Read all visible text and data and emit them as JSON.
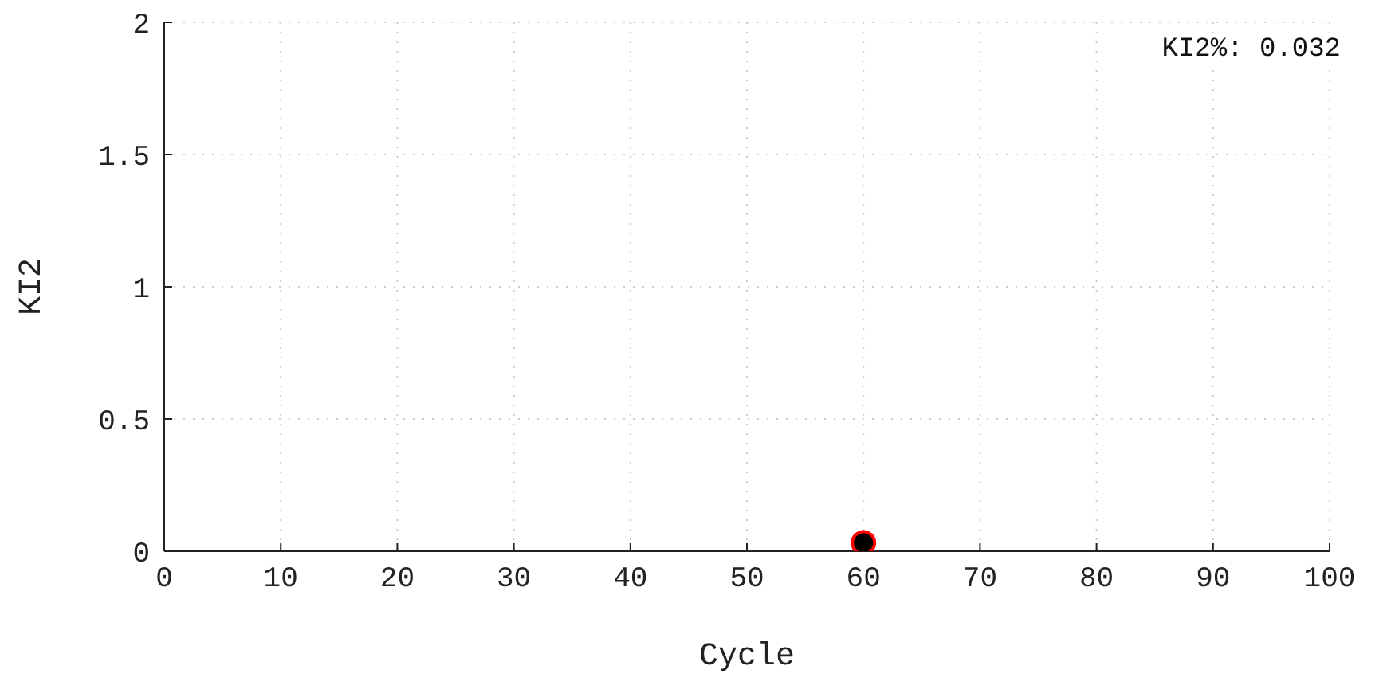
{
  "chart_data": {
    "type": "scatter",
    "xlabel": "Cycle",
    "ylabel": "KI2",
    "annotations": [
      "KI2%: 0.032"
    ],
    "x": [
      60
    ],
    "series": [
      {
        "color": "#000000",
        "values": [
          0.032
        ]
      }
    ],
    "xlim": [
      0,
      100
    ],
    "xticks": [
      0,
      10,
      20,
      30,
      40,
      50,
      60,
      70,
      80,
      90,
      100
    ],
    "ylim": [
      0,
      2
    ],
    "yticks": [
      0,
      0.5,
      1,
      1.5,
      2
    ],
    "grid": true,
    "marker": "circle",
    "legend": false
  }
}
